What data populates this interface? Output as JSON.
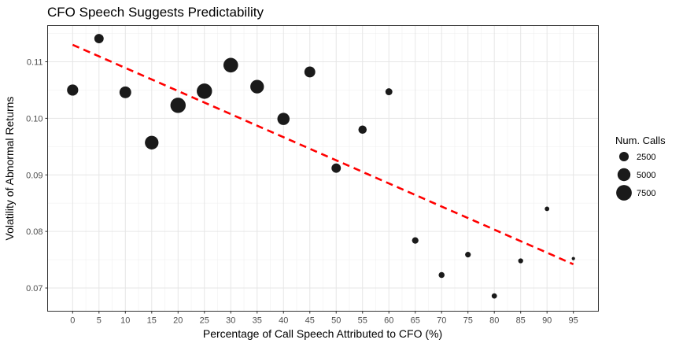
{
  "chart_data": {
    "type": "scatter",
    "title": "CFO Speech Suggests Predictability",
    "xlabel": "Percentage of Call Speech Attributed to CFO (%)",
    "ylabel": "Volatility of Abnormal Returns",
    "xlim": [
      -4.75,
      99.75
    ],
    "ylim": [
      0.0659,
      0.1164
    ],
    "x_ticks": [
      0,
      5,
      10,
      15,
      20,
      25,
      30,
      35,
      40,
      45,
      50,
      55,
      60,
      65,
      70,
      75,
      80,
      85,
      90,
      95
    ],
    "y_ticks": [
      0.07,
      0.08,
      0.09,
      0.1,
      0.11
    ],
    "y_tick_labels": [
      "0.07",
      "0.08",
      "0.09",
      "0.10",
      "0.11"
    ],
    "grid": true,
    "legend_position": "right",
    "points": [
      {
        "x": 0,
        "y": 0.105,
        "calls": 3600
      },
      {
        "x": 5,
        "y": 0.1141,
        "calls": 2400
      },
      {
        "x": 10,
        "y": 0.1046,
        "calls": 4000
      },
      {
        "x": 15,
        "y": 0.0957,
        "calls": 5600
      },
      {
        "x": 20,
        "y": 0.1023,
        "calls": 7200
      },
      {
        "x": 25,
        "y": 0.1048,
        "calls": 7200
      },
      {
        "x": 30,
        "y": 0.1094,
        "calls": 6600
      },
      {
        "x": 35,
        "y": 0.1056,
        "calls": 5600
      },
      {
        "x": 40,
        "y": 0.0999,
        "calls": 4400
      },
      {
        "x": 45,
        "y": 0.1082,
        "calls": 3400
      },
      {
        "x": 50,
        "y": 0.0912,
        "calls": 2400
      },
      {
        "x": 55,
        "y": 0.098,
        "calls": 1800
      },
      {
        "x": 60,
        "y": 0.1047,
        "calls": 1200
      },
      {
        "x": 65,
        "y": 0.0784,
        "calls": 1000
      },
      {
        "x": 70,
        "y": 0.0723,
        "calls": 800
      },
      {
        "x": 75,
        "y": 0.0759,
        "calls": 700
      },
      {
        "x": 80,
        "y": 0.0686,
        "calls": 600
      },
      {
        "x": 85,
        "y": 0.0748,
        "calls": 500
      },
      {
        "x": 90,
        "y": 0.084,
        "calls": 400
      },
      {
        "x": 95,
        "y": 0.0752,
        "calls": 150
      }
    ],
    "trend_line": {
      "style": "dashed",
      "color": "#ff0000",
      "x": [
        0,
        95
      ],
      "y": [
        0.113,
        0.0742
      ]
    },
    "point_color": "#1a1a1a",
    "legend": {
      "title": "Num. Calls",
      "entries": [
        {
          "label": "2500",
          "calls": 2500
        },
        {
          "label": "5000",
          "calls": 5000
        },
        {
          "label": "7500",
          "calls": 7500
        }
      ]
    }
  }
}
